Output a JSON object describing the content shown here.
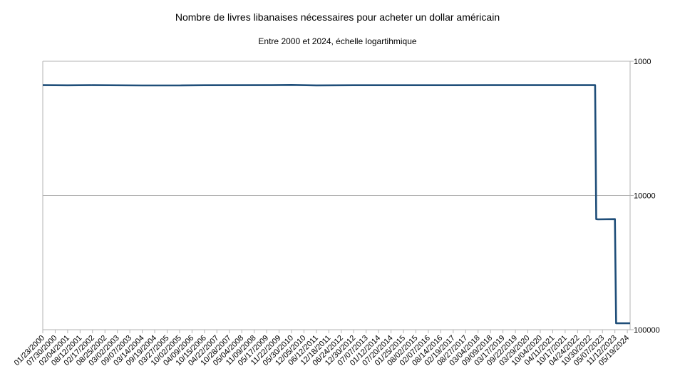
{
  "chart_data": {
    "type": "line",
    "title": "Nombre de livres libanaises nécessaires pour acheter un dollar américain",
    "subtitle": "Entre 2000 et 2024, échelle logartihmique",
    "y_scale": "log",
    "y_reversed": true,
    "ylim": [
      1000,
      100000
    ],
    "y_ticks": [
      {
        "value": 1000,
        "label": "1000"
      },
      {
        "value": 10000,
        "label": "10000"
      },
      {
        "value": 100000,
        "label": "100000"
      }
    ],
    "y_axis_side": "right",
    "grid": "horizontal",
    "x_tick_labels": [
      "01/23/2000",
      "07/30/2000",
      "02/04/2001",
      "08/12/2001",
      "02/17/2002",
      "08/25/2002",
      "03/02/2003",
      "09/07/2003",
      "03/14/2004",
      "09/19/2004",
      "03/27/2005",
      "10/02/2005",
      "04/09/2006",
      "10/15/2006",
      "04/22/2007",
      "10/28/2007",
      "05/04/2008",
      "11/09/2008",
      "05/17/2009",
      "11/22/2009",
      "05/30/2010",
      "12/05/2010",
      "06/12/2011",
      "12/18/2011",
      "06/24/2012",
      "12/30/2012",
      "07/07/2013",
      "01/12/2014",
      "07/20/2014",
      "01/25/2015",
      "08/02/2015",
      "02/07/2016",
      "08/14/2016",
      "02/19/2017",
      "08/27/2017",
      "03/04/2018",
      "09/09/2018",
      "03/17/2019",
      "09/22/2019",
      "03/29/2020",
      "10/04/2020",
      "04/11/2021",
      "10/17/2021",
      "04/24/2022",
      "10/30/2022",
      "05/07/2023",
      "11/12/2023",
      "05/19/2024"
    ],
    "series": [
      {
        "color": "#1f4e79",
        "points": [
          {
            "x": "01/23/2000",
            "y": 1507
          },
          {
            "x": "02/04/2001",
            "y": 1512
          },
          {
            "x": "02/17/2002",
            "y": 1508
          },
          {
            "x": "03/14/2004",
            "y": 1514
          },
          {
            "x": "10/02/2005",
            "y": 1515
          },
          {
            "x": "10/15/2006",
            "y": 1509
          },
          {
            "x": "05/17/2009",
            "y": 1508
          },
          {
            "x": "05/30/2010",
            "y": 1502
          },
          {
            "x": "06/12/2011",
            "y": 1513
          },
          {
            "x": "12/30/2012",
            "y": 1509
          },
          {
            "x": "01/25/2015",
            "y": 1510
          },
          {
            "x": "09/09/2018",
            "y": 1508
          },
          {
            "x": "04/11/2021",
            "y": 1507
          },
          {
            "x": "01/15/2023",
            "y": 1507
          },
          {
            "x": "02/01/2023",
            "y": 15000
          },
          {
            "x": "03/01/2023",
            "y": 15060
          },
          {
            "x": "11/12/2023",
            "y": 15000
          },
          {
            "x": "12/01/2023",
            "y": 89500
          },
          {
            "x": "06/30/2024",
            "y": 89500
          }
        ]
      }
    ]
  }
}
